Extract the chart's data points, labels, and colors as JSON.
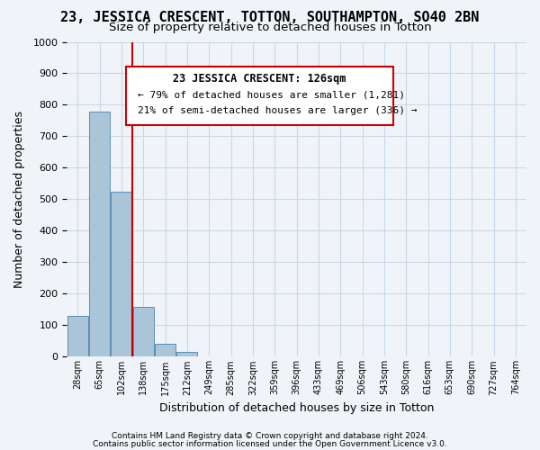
{
  "title": "23, JESSICA CRESCENT, TOTTON, SOUTHAMPTON, SO40 2BN",
  "subtitle": "Size of property relative to detached houses in Totton",
  "xlabel": "Distribution of detached houses by size in Totton",
  "ylabel": "Number of detached properties",
  "bin_labels": [
    "28sqm",
    "65sqm",
    "102sqm",
    "138sqm",
    "175sqm",
    "212sqm",
    "249sqm",
    "285sqm",
    "322sqm",
    "359sqm",
    "396sqm",
    "433sqm",
    "469sqm",
    "506sqm",
    "543sqm",
    "580sqm",
    "616sqm",
    "653sqm",
    "690sqm",
    "727sqm",
    "764sqm"
  ],
  "bar_values": [
    130,
    778,
    525,
    158,
    40,
    15,
    0,
    0,
    0,
    0,
    0,
    0,
    0,
    0,
    0,
    0,
    0,
    0,
    0,
    0,
    0
  ],
  "bar_color": "#aac4d8",
  "bar_edge_color": "#5a8fb5",
  "vline_x": 2.5,
  "vline_color": "#cc0000",
  "ylim": [
    0,
    1000
  ],
  "yticks": [
    0,
    100,
    200,
    300,
    400,
    500,
    600,
    700,
    800,
    900,
    1000
  ],
  "annotation_title": "23 JESSICA CRESCENT: 126sqm",
  "annotation_line1": "← 79% of detached houses are smaller (1,281)",
  "annotation_line2": "21% of semi-detached houses are larger (336) →",
  "annotation_box_color": "#ffffff",
  "annotation_box_edge_color": "#cc0000",
  "footer_line1": "Contains HM Land Registry data © Crown copyright and database right 2024.",
  "footer_line2": "Contains public sector information licensed under the Open Government Licence v3.0.",
  "background_color": "#f0f4f8",
  "grid_color": "#c8d8e8",
  "title_fontsize": 11,
  "subtitle_fontsize": 9.5
}
